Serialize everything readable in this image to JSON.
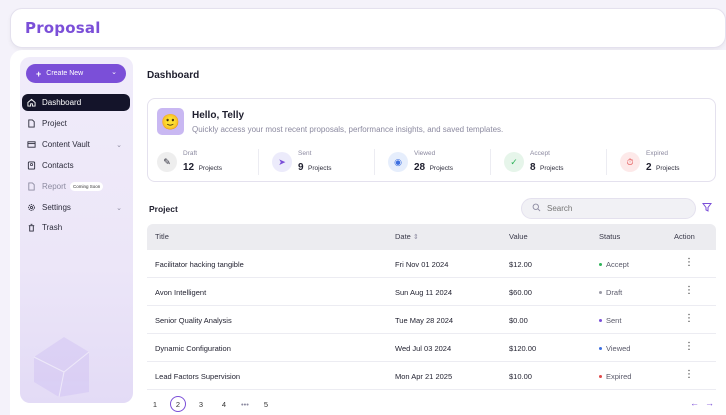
{
  "app": {
    "logo": "Proposal"
  },
  "sidebar": {
    "create_label": "Create New",
    "items": [
      {
        "label": "Dashboard",
        "icon": "home-icon",
        "active": true
      },
      {
        "label": "Project",
        "icon": "file-icon"
      },
      {
        "label": "Content Vault",
        "icon": "vault-icon",
        "has_submenu": true
      },
      {
        "label": "Contacts",
        "icon": "contacts-icon"
      },
      {
        "label": "Report",
        "icon": "report-icon",
        "disabled": true,
        "badge": "Coming Soon"
      },
      {
        "label": "Settings",
        "icon": "gear-icon",
        "has_submenu": true
      },
      {
        "label": "Trash",
        "icon": "trash-icon"
      }
    ]
  },
  "header": {
    "title": "Dashboard"
  },
  "greeting": {
    "title": "Hello, Telly",
    "subtitle": "Quickly access your most recent proposals, performance insights, and saved templates."
  },
  "stats": [
    {
      "label": "Draft",
      "count": "12",
      "unit": "Projects",
      "icon": "pencil-icon",
      "color": "#eeeeee"
    },
    {
      "label": "Sent",
      "count": "9",
      "unit": "Projects",
      "icon": "send-icon",
      "color": "#ecebfb"
    },
    {
      "label": "Viewed",
      "count": "28",
      "unit": "Projects",
      "icon": "eye-icon",
      "color": "#e6eefc"
    },
    {
      "label": "Accept",
      "count": "8",
      "unit": "Projects",
      "icon": "check-circle-icon",
      "color": "#e6f5ea"
    },
    {
      "label": "Expired",
      "count": "2",
      "unit": "Projects",
      "icon": "timer-icon",
      "color": "#fde9e9"
    }
  ],
  "projects": {
    "label": "Project",
    "search_placeholder": "Search",
    "columns": {
      "title": "Title",
      "date": "Date",
      "value": "Value",
      "status": "Status",
      "action": "Action"
    },
    "rows": [
      {
        "title": "Facilitator hacking tangible",
        "date": "Fri Nov 01 2024",
        "value": "$12.00",
        "status": "Accept",
        "status_color": "#2fb35a"
      },
      {
        "title": "Avon Intelligent",
        "date": "Sun Aug 11 2024",
        "value": "$60.00",
        "status": "Draft",
        "status_color": "#9a9aa6"
      },
      {
        "title": "Senior Quality Analysis",
        "date": "Tue May 28 2024",
        "value": "$0.00",
        "status": "Sent",
        "status_color": "#7b4fd8"
      },
      {
        "title": "Dynamic Configuration",
        "date": "Wed Jul 03 2024",
        "value": "$120.00",
        "status": "Viewed",
        "status_color": "#3d6fe0"
      },
      {
        "title": "Lead Factors Supervision",
        "date": "Mon Apr 21 2025",
        "value": "$10.00",
        "status": "Expired",
        "status_color": "#e04848"
      }
    ]
  },
  "pagination": {
    "pages": [
      "1",
      "2",
      "3",
      "4",
      "•••",
      "5"
    ],
    "current": "2"
  },
  "colors": {
    "accent": "#7b4fd8",
    "sidebar_active": "#14142a"
  }
}
